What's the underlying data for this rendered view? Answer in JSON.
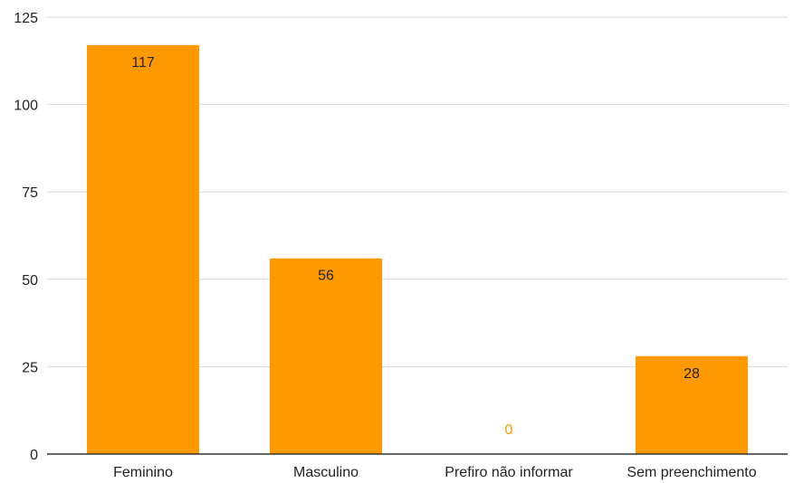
{
  "chart_data": {
    "type": "bar",
    "categories": [
      "Feminino",
      "Masculino",
      "Prefiro não informar",
      "Sem preenchimento"
    ],
    "values": [
      117,
      56,
      0,
      28
    ],
    "data_labels": [
      "117",
      "56",
      "0",
      "28"
    ],
    "title": "",
    "xlabel": "",
    "ylabel": "",
    "ylim": [
      0,
      125
    ],
    "yticks": [
      "0",
      "25",
      "50",
      "75",
      "100",
      "125"
    ],
    "grid": true,
    "legend": "none",
    "bar_color": "#FF9900",
    "zero_label_color": "#FF9900",
    "label_color": "#222222",
    "grid_color": "#d9d9d9",
    "axis_color": "#333333"
  }
}
